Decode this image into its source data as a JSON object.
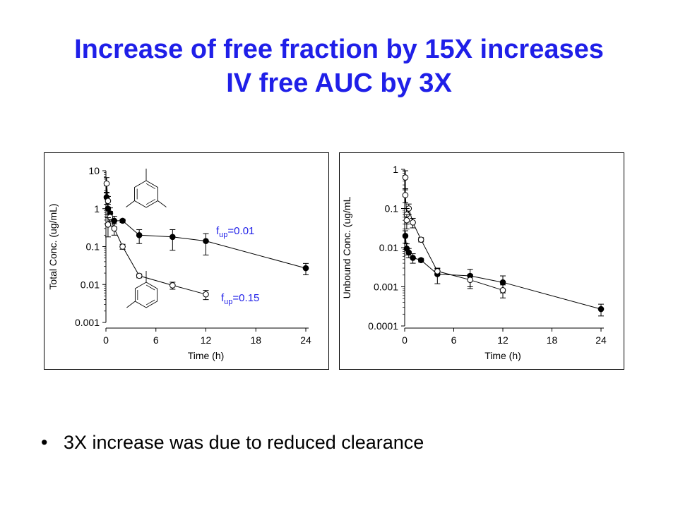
{
  "slide": {
    "title_line1": "Increase of free fraction by 15X increases",
    "title_line2": "IV free AUC by 3X",
    "bullet_symbol": "•",
    "bullet_text": "3X increase was due to reduced clearance",
    "title_color": "#1f1fe8",
    "label_color": "#1f1fe8"
  },
  "chart_data": [
    {
      "type": "scatter",
      "title": "",
      "xlabel": "Time (h)",
      "ylabel": "Total Conc. (ug/mL)",
      "x_ticks": [
        "0",
        "6",
        "12",
        "18",
        "24"
      ],
      "y_ticks": [
        "10",
        "1",
        "0.1",
        "0.01",
        "0.001"
      ],
      "xlim": [
        0,
        24
      ],
      "ylim": [
        0.001,
        10
      ],
      "y_scale": "log",
      "grid": false,
      "series": [
        {
          "name": "fup=0.01",
          "marker": "filled-circle",
          "label_main": "f",
          "label_sub": "up",
          "label_value": "=0.01",
          "points": [
            {
              "x": 0.083,
              "y": 2.0,
              "err": 0.7
            },
            {
              "x": 0.25,
              "y": 1.0,
              "err": 0.3
            },
            {
              "x": 0.5,
              "y": 0.75,
              "err": 0.3
            },
            {
              "x": 1.0,
              "y": 0.48,
              "err": 0.15
            },
            {
              "x": 2.0,
              "y": 0.48,
              "err": 0.05
            },
            {
              "x": 4.0,
              "y": 0.2,
              "err": 0.08
            },
            {
              "x": 8.0,
              "y": 0.18,
              "err": 0.1
            },
            {
              "x": 12.0,
              "y": 0.14,
              "err": 0.08
            },
            {
              "x": 24.0,
              "y": 0.027,
              "err": 0.009
            }
          ]
        },
        {
          "name": "fup=0.15",
          "marker": "open-circle",
          "label_main": "f",
          "label_sub": "up",
          "label_value": "=0.15",
          "points": [
            {
              "x": 0.083,
              "y": 4.6,
              "err": 2.0
            },
            {
              "x": 0.25,
              "y": 1.6,
              "err": 0.5
            },
            {
              "x": 0.5,
              "y": 0.6,
              "err": 0.25
            },
            {
              "x": 0.25,
              "y": 0.38,
              "err": 0.2
            },
            {
              "x": 1.0,
              "y": 0.3,
              "err": 0.1
            },
            {
              "x": 2.0,
              "y": 0.1,
              "err": 0.015
            },
            {
              "x": 4.0,
              "y": 0.017,
              "err": 0.002
            },
            {
              "x": 8.0,
              "y": 0.0095,
              "err": 0.002
            },
            {
              "x": 12.0,
              "y": 0.0055,
              "err": 0.0015
            }
          ]
        }
      ]
    },
    {
      "type": "scatter",
      "title": "",
      "xlabel": "Time (h)",
      "ylabel": "Unbound Conc. (ug/mL",
      "x_ticks": [
        "0",
        "6",
        "12",
        "18",
        "24"
      ],
      "y_ticks": [
        "1",
        "0.1",
        "0.01",
        "0.001",
        "0.0001"
      ],
      "xlim": [
        0,
        24
      ],
      "ylim": [
        0.0001,
        1
      ],
      "y_scale": "log",
      "grid": false,
      "series": [
        {
          "marker": "filled-circle",
          "points": [
            {
              "x": 0.083,
              "y": 0.02,
              "err": 0.007
            },
            {
              "x": 0.25,
              "y": 0.0095,
              "err": 0.003
            },
            {
              "x": 0.5,
              "y": 0.0075,
              "err": 0.002
            },
            {
              "x": 1.0,
              "y": 0.0055,
              "err": 0.0015
            },
            {
              "x": 2.0,
              "y": 0.0048,
              "err": 0.0005
            },
            {
              "x": 4.0,
              "y": 0.0021,
              "err": 0.0009
            },
            {
              "x": 8.0,
              "y": 0.0019,
              "err": 0.0009
            },
            {
              "x": 12.0,
              "y": 0.0013,
              "err": 0.0006
            },
            {
              "x": 24.0,
              "y": 0.00027,
              "err": 9e-05
            }
          ]
        },
        {
          "marker": "open-circle",
          "points": [
            {
              "x": 0.083,
              "y": 0.62,
              "err": 0.3
            },
            {
              "x": 0.083,
              "y": 0.22,
              "err": 0.08
            },
            {
              "x": 0.5,
              "y": 0.1,
              "err": 0.03
            },
            {
              "x": 0.25,
              "y": 0.07,
              "err": 0.03
            },
            {
              "x": 0.25,
              "y": 0.05,
              "err": 0.02
            },
            {
              "x": 1.0,
              "y": 0.044,
              "err": 0.012
            },
            {
              "x": 2.0,
              "y": 0.016,
              "err": 0.002
            },
            {
              "x": 4.0,
              "y": 0.0025,
              "err": 0.0004
            },
            {
              "x": 8.0,
              "y": 0.0015,
              "err": 0.0006
            },
            {
              "x": 12.0,
              "y": 0.00082,
              "err": 0.0003
            }
          ]
        }
      ]
    }
  ]
}
